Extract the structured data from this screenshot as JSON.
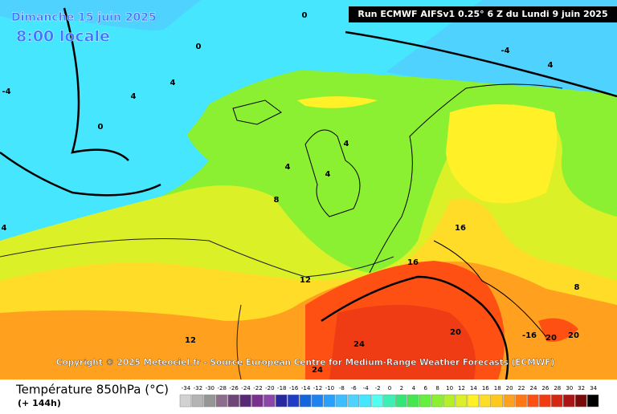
{
  "header": {
    "date": "Dimanche 15 juin 2025",
    "local_time": "8:00 locale",
    "run": "Run ECMWF AIFSv1 0.25° 6 Z du Lundi 9 juin 2025"
  },
  "contour_labels": [
    "0",
    "0",
    "0",
    "-4",
    "-4",
    "4",
    "4",
    "4",
    "4",
    "4",
    "4",
    "4",
    "8",
    "8",
    "12",
    "12",
    "16",
    "16",
    "-16",
    "20",
    "20",
    "20",
    "24",
    "24"
  ],
  "copyright": "Copyright © 2025 Meteociel.fr - Source European Centre for Medium-Range Weather Forecasts (ECMWF)",
  "legend": {
    "title": "Température 850hPa (°C)",
    "subtitle": "(+ 144h)",
    "scale": [
      -34,
      -32,
      -30,
      -28,
      -26,
      -24,
      -22,
      -20,
      -18,
      -16,
      -14,
      -12,
      -10,
      -8,
      -6,
      -4,
      -2,
      0,
      2,
      4,
      6,
      8,
      10,
      12,
      14,
      16,
      18,
      20,
      22,
      24,
      26,
      28,
      30,
      32,
      34
    ],
    "colors": [
      "#d2d2d2",
      "#b4b4b4",
      "#969696",
      "#8c6e8c",
      "#6e4678",
      "#5a2878",
      "#78328c",
      "#8c46aa",
      "#2828a0",
      "#1e3cc8",
      "#1464dc",
      "#1e82f0",
      "#28a0ff",
      "#3cbeff",
      "#50d2ff",
      "#46e6ff",
      "#50fff0",
      "#3cf0b4",
      "#32e678",
      "#46e650",
      "#64f03c",
      "#8cf032",
      "#b4f028",
      "#dcf028",
      "#fff028",
      "#ffdc28",
      "#ffc81e",
      "#ffa01e",
      "#ff7814",
      "#ff5014",
      "#f03c14",
      "#d22814",
      "#aa1414",
      "#780a0a",
      "#000000"
    ]
  }
}
